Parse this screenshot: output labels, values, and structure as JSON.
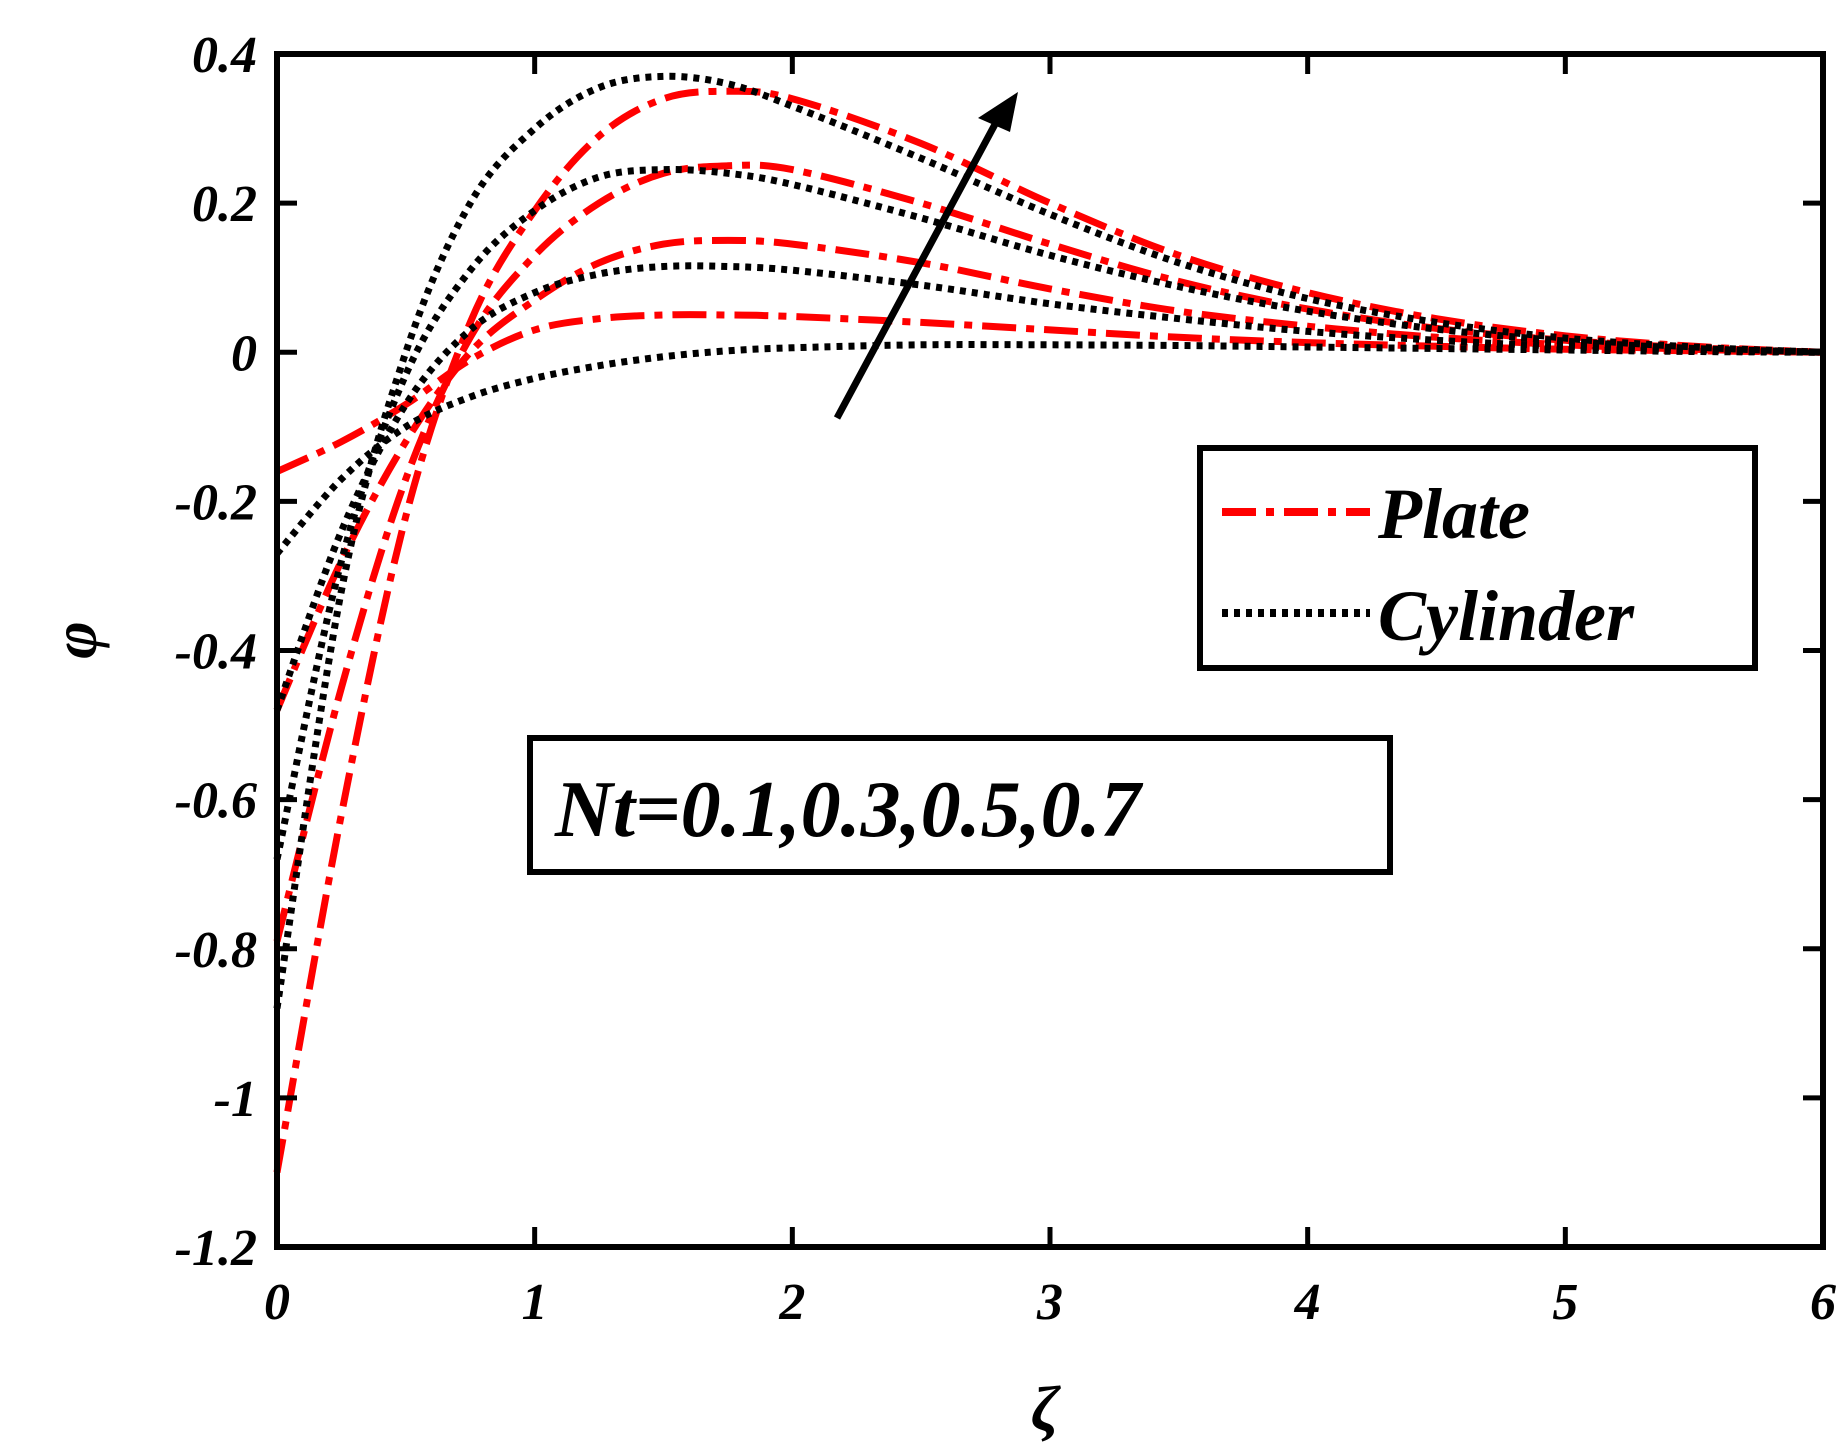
{
  "chart_data": {
    "type": "line",
    "title": "",
    "xlabel": "ζ",
    "ylabel": "φ",
    "xlim": [
      0,
      6
    ],
    "ylim": [
      -1.2,
      0.4
    ],
    "xticks": [
      0,
      1,
      2,
      3,
      4,
      5,
      6
    ],
    "xtick_labels": [
      "0",
      "1",
      "2",
      "3",
      "4",
      "5",
      "6"
    ],
    "yticks": [
      0.4,
      0.2,
      0,
      -0.2,
      -0.4,
      -0.6,
      -0.8,
      -1,
      -1.2
    ],
    "ytick_labels": [
      "0.4",
      "0.2",
      "0",
      "-0.2",
      "-0.4",
      "-0.6",
      "-0.8",
      "-1",
      "-1.2"
    ],
    "grid": false,
    "legend": {
      "placement": "right",
      "entries": [
        {
          "label": "Plate",
          "color": "#ff0000",
          "style": "dash-dot"
        },
        {
          "label": "Cylinder",
          "color": "#000000",
          "style": "dotted"
        }
      ]
    },
    "annotation": "Nt=0.1,0.3,0.5,0.7",
    "arrow_direction": "increasing Nt",
    "series": [
      {
        "name": "Plate Nt=0.1",
        "group": "Plate",
        "color": "#ff0000",
        "x": [
          0,
          0.25,
          0.5,
          0.75,
          1,
          1.25,
          1.5,
          1.75,
          2,
          2.5,
          3,
          3.5,
          4,
          4.5,
          5,
          5.5,
          6
        ],
        "y": [
          -0.16,
          -0.12,
          -0.07,
          -0.01,
          0.03,
          0.045,
          0.05,
          0.05,
          0.048,
          0.04,
          0.03,
          0.02,
          0.013,
          0.008,
          0.004,
          0.002,
          0
        ]
      },
      {
        "name": "Plate Nt=0.3",
        "group": "Plate",
        "color": "#ff0000",
        "x": [
          0,
          0.25,
          0.5,
          0.75,
          1,
          1.25,
          1.5,
          1.75,
          2,
          2.5,
          3,
          3.5,
          4,
          4.5,
          5,
          5.5,
          6
        ],
        "y": [
          -0.48,
          -0.28,
          -0.12,
          0.0,
          0.07,
          0.12,
          0.145,
          0.15,
          0.145,
          0.12,
          0.085,
          0.055,
          0.035,
          0.02,
          0.01,
          0.004,
          0
        ]
      },
      {
        "name": "Plate Nt=0.5",
        "group": "Plate",
        "color": "#ff0000",
        "x": [
          0,
          0.25,
          0.5,
          0.75,
          1,
          1.25,
          1.5,
          1.75,
          2,
          2.5,
          3,
          3.5,
          4,
          4.5,
          5,
          5.5,
          6
        ],
        "y": [
          -0.79,
          -0.45,
          -0.17,
          0.02,
          0.13,
          0.2,
          0.24,
          0.25,
          0.245,
          0.2,
          0.145,
          0.095,
          0.058,
          0.032,
          0.016,
          0.006,
          0
        ]
      },
      {
        "name": "Plate Nt=0.7",
        "group": "Plate",
        "color": "#ff0000",
        "x": [
          0,
          0.25,
          0.5,
          0.75,
          1,
          1.25,
          1.5,
          1.75,
          2,
          2.5,
          3,
          3.5,
          4,
          4.5,
          5,
          5.5,
          6
        ],
        "y": [
          -1.1,
          -0.62,
          -0.22,
          0.04,
          0.19,
          0.29,
          0.34,
          0.35,
          0.34,
          0.28,
          0.2,
          0.13,
          0.08,
          0.045,
          0.022,
          0.008,
          0
        ]
      },
      {
        "name": "Cylinder Nt=0.1",
        "group": "Cylinder",
        "color": "#000000",
        "x": [
          0,
          0.25,
          0.5,
          0.75,
          1,
          1.25,
          1.5,
          1.75,
          2,
          2.5,
          3,
          3.5,
          4,
          4.5,
          5,
          5.5,
          6
        ],
        "y": [
          -0.27,
          -0.17,
          -0.1,
          -0.06,
          -0.035,
          -0.018,
          -0.006,
          0.002,
          0.006,
          0.01,
          0.01,
          0.009,
          0.007,
          0.005,
          0.003,
          0.001,
          0
        ]
      },
      {
        "name": "Cylinder Nt=0.3",
        "group": "Cylinder",
        "color": "#000000",
        "x": [
          0,
          0.25,
          0.5,
          0.75,
          1,
          1.25,
          1.5,
          1.75,
          2,
          2.5,
          3,
          3.5,
          4,
          4.5,
          5,
          5.5,
          6
        ],
        "y": [
          -0.48,
          -0.24,
          -0.07,
          0.03,
          0.08,
          0.105,
          0.115,
          0.115,
          0.11,
          0.09,
          0.065,
          0.045,
          0.028,
          0.016,
          0.008,
          0.003,
          0
        ]
      },
      {
        "name": "Cylinder Nt=0.5",
        "group": "Cylinder",
        "color": "#000000",
        "x": [
          0,
          0.25,
          0.5,
          0.75,
          1,
          1.25,
          1.5,
          1.75,
          2,
          2.5,
          3,
          3.5,
          4,
          4.5,
          5,
          5.5,
          6
        ],
        "y": [
          -0.68,
          -0.28,
          -0.03,
          0.11,
          0.19,
          0.235,
          0.245,
          0.24,
          0.225,
          0.18,
          0.13,
          0.088,
          0.055,
          0.031,
          0.015,
          0.005,
          0
        ]
      },
      {
        "name": "Cylinder Nt=0.7",
        "group": "Cylinder",
        "color": "#000000",
        "x": [
          0,
          0.25,
          0.5,
          0.75,
          1,
          1.25,
          1.5,
          1.75,
          2,
          2.5,
          3,
          3.5,
          4,
          4.5,
          5,
          5.5,
          6
        ],
        "y": [
          -0.88,
          -0.32,
          0.0,
          0.2,
          0.3,
          0.355,
          0.37,
          0.36,
          0.33,
          0.26,
          0.185,
          0.12,
          0.072,
          0.04,
          0.019,
          0.007,
          0
        ]
      }
    ]
  }
}
